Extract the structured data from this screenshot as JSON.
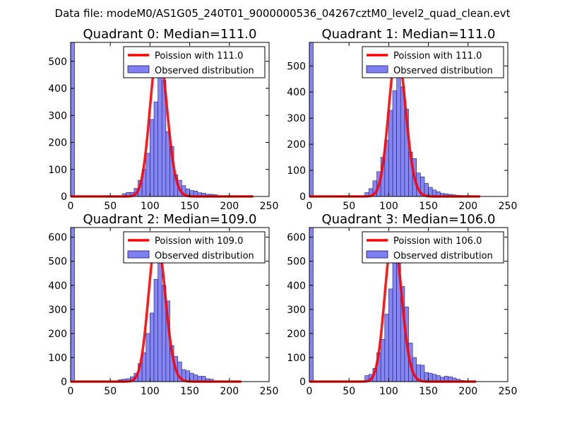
{
  "figure_title": "Data file: modeM0/AS1G05_240T01_9000000536_04267cztM0_level2_quad_clean.evt",
  "colors": {
    "hist_fill": "#7f7ff0",
    "hist_edge": "#1a1a80",
    "poisson_line": "#ff0000",
    "frame": "#000000"
  },
  "chart_data": [
    {
      "type": "bar",
      "title": "Quadrant 0: Median=111.0",
      "xlim": [
        0,
        250
      ],
      "ylim": [
        0,
        570
      ],
      "xticks": [
        0,
        50,
        100,
        150,
        200,
        250
      ],
      "yticks": [
        0,
        100,
        200,
        300,
        400,
        500
      ],
      "legend": {
        "placement": "top-right",
        "line_label": "Poission with 111.0",
        "bar_label": "Observed distribution"
      },
      "histogram": {
        "bin_width": 5,
        "bins": [
          [
            0,
            570
          ],
          [
            65,
            10
          ],
          [
            70,
            15
          ],
          [
            75,
            15
          ],
          [
            80,
            30
          ],
          [
            85,
            60
          ],
          [
            90,
            100
          ],
          [
            95,
            160
          ],
          [
            100,
            285
          ],
          [
            105,
            350
          ],
          [
            110,
            470
          ],
          [
            115,
            430
          ],
          [
            120,
            240
          ],
          [
            125,
            185
          ],
          [
            130,
            80
          ],
          [
            135,
            60
          ],
          [
            140,
            40
          ],
          [
            145,
            28
          ],
          [
            150,
            22
          ],
          [
            155,
            20
          ],
          [
            160,
            14
          ],
          [
            165,
            12
          ],
          [
            170,
            8
          ],
          [
            175,
            8
          ],
          [
            180,
            6
          ],
          [
            185,
            3
          ],
          [
            195,
            2
          ]
        ]
      },
      "poisson": {
        "mean": 111,
        "scale": 550,
        "x_range": [
          0,
          230
        ]
      }
    },
    {
      "type": "bar",
      "title": "Quadrant 1: Median=111.0",
      "xlim": [
        0,
        250
      ],
      "ylim": [
        0,
        590
      ],
      "xticks": [
        0,
        50,
        100,
        150,
        200,
        250
      ],
      "yticks": [
        0,
        100,
        200,
        300,
        400,
        500
      ],
      "legend": {
        "placement": "top-right",
        "line_label": "Poission with 111.0",
        "bar_label": "Observed distribution"
      },
      "histogram": {
        "bin_width": 5,
        "bins": [
          [
            0,
            590
          ],
          [
            70,
            15
          ],
          [
            75,
            30
          ],
          [
            80,
            60
          ],
          [
            85,
            95
          ],
          [
            90,
            150
          ],
          [
            95,
            215
          ],
          [
            100,
            330
          ],
          [
            105,
            405
          ],
          [
            110,
            560
          ],
          [
            115,
            420
          ],
          [
            120,
            335
          ],
          [
            125,
            170
          ],
          [
            130,
            145
          ],
          [
            135,
            90
          ],
          [
            140,
            75
          ],
          [
            145,
            50
          ],
          [
            150,
            35
          ],
          [
            155,
            25
          ],
          [
            160,
            18
          ],
          [
            165,
            12
          ],
          [
            170,
            10
          ],
          [
            175,
            8
          ],
          [
            180,
            6
          ],
          [
            185,
            4
          ],
          [
            190,
            3
          ]
        ]
      },
      "poisson": {
        "mean": 111,
        "scale": 560,
        "x_range": [
          0,
          215
        ]
      }
    },
    {
      "type": "bar",
      "title": "Quadrant 2: Median=109.0",
      "xlim": [
        0,
        250
      ],
      "ylim": [
        0,
        640
      ],
      "xticks": [
        0,
        50,
        100,
        150,
        200,
        250
      ],
      "yticks": [
        0,
        100,
        200,
        300,
        400,
        500,
        600
      ],
      "legend": {
        "placement": "top-right",
        "line_label": "Poission with 109.0",
        "bar_label": "Observed distribution"
      },
      "histogram": {
        "bin_width": 5,
        "bins": [
          [
            0,
            640
          ],
          [
            60,
            8
          ],
          [
            65,
            10
          ],
          [
            70,
            12
          ],
          [
            75,
            20
          ],
          [
            80,
            35
          ],
          [
            85,
            75
          ],
          [
            90,
            120
          ],
          [
            95,
            200
          ],
          [
            100,
            285
          ],
          [
            105,
            425
          ],
          [
            110,
            555
          ],
          [
            115,
            400
          ],
          [
            120,
            335
          ],
          [
            125,
            150
          ],
          [
            130,
            105
          ],
          [
            135,
            82
          ],
          [
            140,
            50
          ],
          [
            145,
            45
          ],
          [
            150,
            35
          ],
          [
            155,
            28
          ],
          [
            160,
            22
          ],
          [
            165,
            22
          ],
          [
            170,
            12
          ],
          [
            175,
            10
          ],
          [
            185,
            3
          ]
        ]
      },
      "poisson": {
        "mean": 109,
        "scale": 600,
        "x_range": [
          0,
          215
        ]
      }
    },
    {
      "type": "bar",
      "title": "Quadrant 3: Median=106.0",
      "xlim": [
        0,
        250
      ],
      "ylim": [
        0,
        640
      ],
      "xticks": [
        0,
        50,
        100,
        150,
        200,
        250
      ],
      "yticks": [
        0,
        100,
        200,
        300,
        400,
        500,
        600
      ],
      "legend": {
        "placement": "top-right",
        "line_label": "Poission with 106.0",
        "bar_label": "Observed distribution"
      },
      "histogram": {
        "bin_width": 5,
        "bins": [
          [
            0,
            640
          ],
          [
            70,
            25
          ],
          [
            75,
            30
          ],
          [
            80,
            55
          ],
          [
            85,
            120
          ],
          [
            90,
            175
          ],
          [
            95,
            280
          ],
          [
            100,
            385
          ],
          [
            105,
            525
          ],
          [
            110,
            560
          ],
          [
            115,
            395
          ],
          [
            120,
            310
          ],
          [
            125,
            160
          ],
          [
            130,
            100
          ],
          [
            135,
            70
          ],
          [
            140,
            68
          ],
          [
            145,
            38
          ],
          [
            150,
            35
          ],
          [
            155,
            30
          ],
          [
            160,
            25
          ],
          [
            165,
            18
          ],
          [
            170,
            22
          ],
          [
            175,
            20
          ],
          [
            180,
            15
          ],
          [
            185,
            10
          ],
          [
            190,
            5
          ],
          [
            195,
            3
          ]
        ]
      },
      "poisson": {
        "mean": 106,
        "scale": 615,
        "x_range": [
          0,
          210
        ]
      }
    }
  ]
}
